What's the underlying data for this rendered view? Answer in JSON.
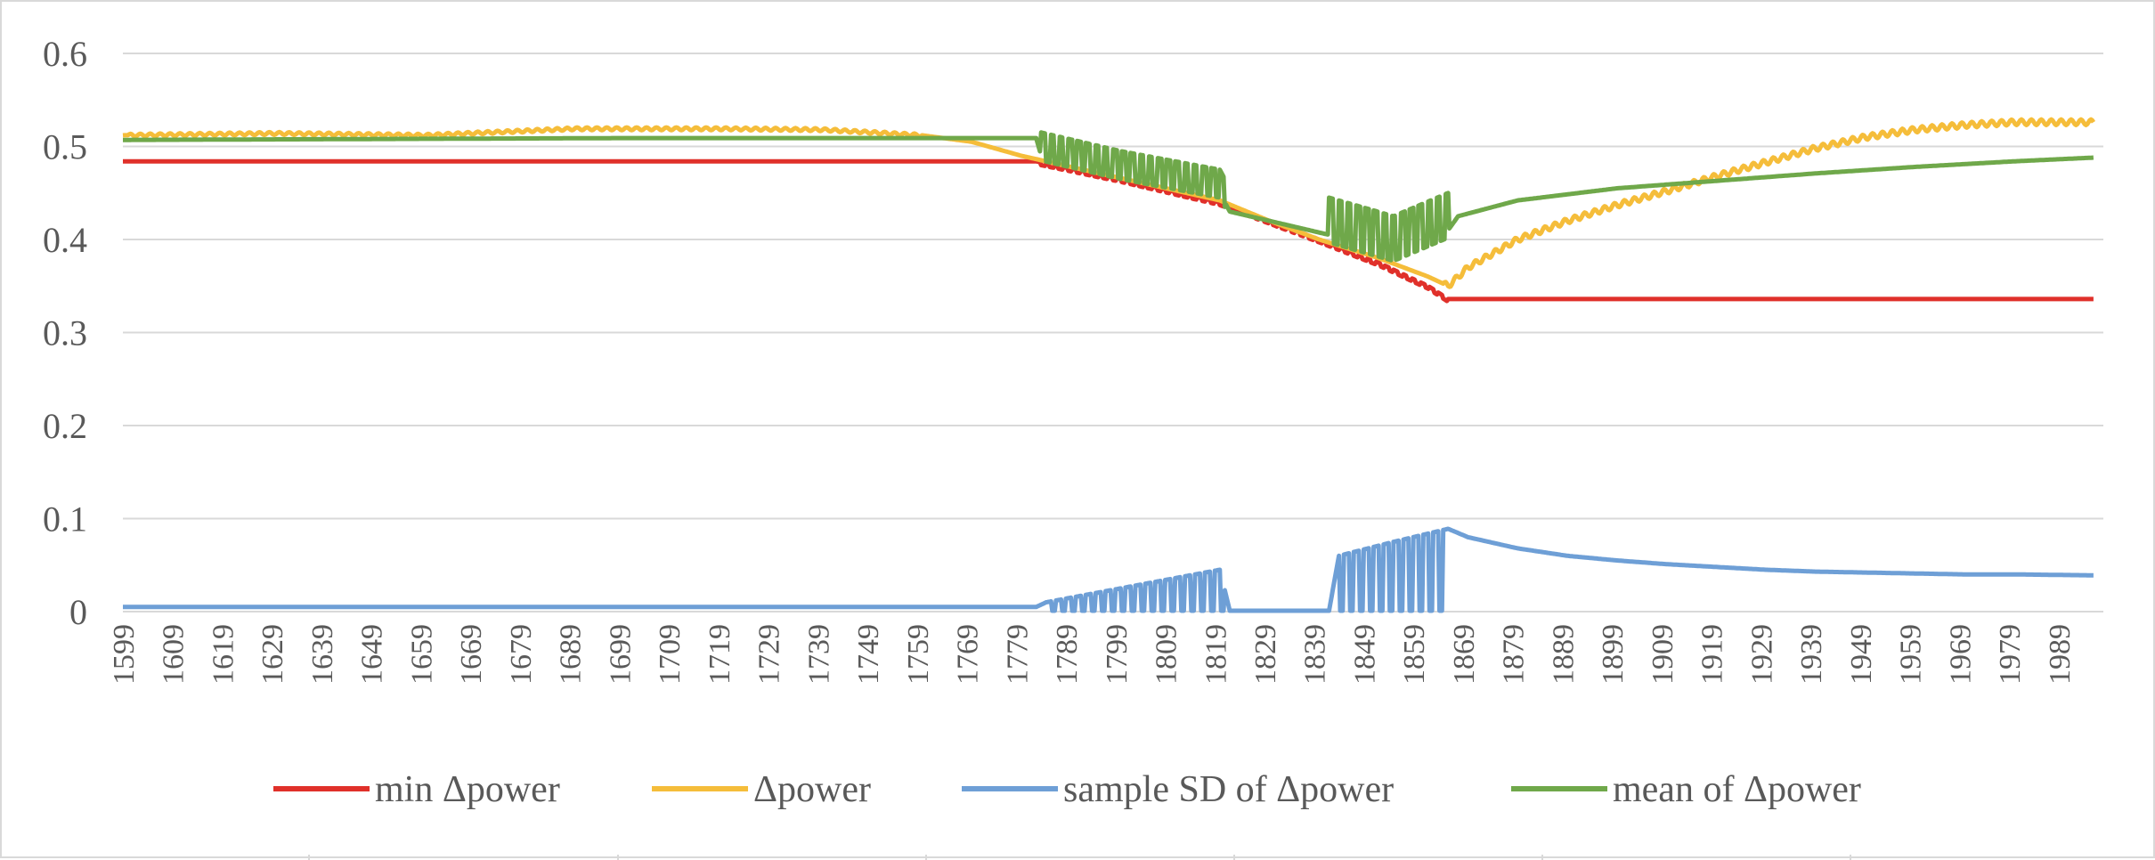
{
  "chart_data": {
    "type": "line",
    "title": "",
    "xlabel": "",
    "ylabel": "",
    "xlim": [
      1599,
      1998
    ],
    "ylim": [
      0,
      0.6
    ],
    "y_ticks": [
      "0",
      "0.1",
      "0.2",
      "0.3",
      "0.4",
      "0.5",
      "0.6"
    ],
    "x_ticks": [
      "1599",
      "1609",
      "1619",
      "1629",
      "1639",
      "1649",
      "1659",
      "1669",
      "1679",
      "1689",
      "1699",
      "1709",
      "1719",
      "1729",
      "1739",
      "1749",
      "1759",
      "1769",
      "1779",
      "1789",
      "1799",
      "1809",
      "1819",
      "1829",
      "1839",
      "1849",
      "1859",
      "1869",
      "1879",
      "1889",
      "1899",
      "1909",
      "1919",
      "1929",
      "1939",
      "1949",
      "1959",
      "1969",
      "1979",
      "1989"
    ],
    "grid": true,
    "legend_position": "bottom",
    "series": [
      {
        "name": "min Δpower",
        "color": "#e0302a",
        "x": [
          1599,
          1783,
          1800,
          1820,
          1830,
          1840,
          1852,
          1862,
          1866,
          1996
        ],
        "y": [
          0.484,
          0.484,
          0.465,
          0.44,
          0.42,
          0.4,
          0.375,
          0.35,
          0.336,
          0.336
        ]
      },
      {
        "name": "Δpower",
        "color": "#f5bd3a",
        "x": [
          1599,
          1630,
          1660,
          1690,
          1720,
          1740,
          1760,
          1770,
          1780,
          1800,
          1820,
          1830,
          1840,
          1852,
          1862,
          1866,
          1870,
          1880,
          1890,
          1900,
          1910,
          1920,
          1930,
          1940,
          1950,
          1960,
          1970,
          1980,
          1996
        ],
        "y": [
          0.512,
          0.514,
          0.512,
          0.519,
          0.519,
          0.518,
          0.512,
          0.505,
          0.49,
          0.466,
          0.442,
          0.42,
          0.4,
          0.38,
          0.36,
          0.35,
          0.37,
          0.4,
          0.42,
          0.437,
          0.452,
          0.468,
          0.483,
          0.498,
          0.51,
          0.518,
          0.523,
          0.526,
          0.526
        ]
      },
      {
        "name": "sample SD of Δpower",
        "color": "#6e9fd6",
        "x": [
          1599,
          1783,
          1785,
          1800,
          1820,
          1822,
          1842,
          1844,
          1855,
          1866,
          1870,
          1880,
          1890,
          1900,
          1910,
          1920,
          1930,
          1940,
          1950,
          1960,
          1970,
          1980,
          1996
        ],
        "y": [
          0.005,
          0.005,
          0.01,
          0.025,
          0.045,
          0.001,
          0.001,
          0.06,
          0.075,
          0.089,
          0.08,
          0.068,
          0.06,
          0.055,
          0.051,
          0.048,
          0.045,
          0.043,
          0.042,
          0.041,
          0.04,
          0.04,
          0.039
        ]
      },
      {
        "name": "mean of Δpower",
        "color": "#6fa84a",
        "x": [
          1599,
          1700,
          1783,
          1784,
          1800,
          1820,
          1822,
          1830,
          1842,
          1855,
          1866,
          1868,
          1880,
          1900,
          1920,
          1940,
          1960,
          1980,
          1996
        ],
        "y": [
          0.507,
          0.509,
          0.509,
          0.49,
          0.47,
          0.45,
          0.43,
          0.42,
          0.405,
          0.385,
          0.41,
          0.425,
          0.442,
          0.455,
          0.463,
          0.471,
          0.478,
          0.484,
          0.488
        ]
      }
    ],
    "oscillations": [
      {
        "series": 0,
        "from": 1783,
        "to": 1866,
        "mode": "min",
        "period": 1.8
      },
      {
        "series": 1,
        "from": 1865,
        "to": 1996,
        "mode": "jitter",
        "period": 2,
        "amp": 0.003
      },
      {
        "series": 1,
        "from": 1600,
        "to": 1760,
        "mode": "jitter",
        "period": 2,
        "amp": 0.0015
      },
      {
        "series": 3,
        "from": 1784,
        "to": 1821,
        "mode": "band",
        "period": 1.8,
        "amp": 0.025
      },
      {
        "series": 3,
        "from": 1842,
        "to": 1866,
        "mode": "band",
        "period": 1.8,
        "amp": 0.04
      },
      {
        "series": 2,
        "from": 1785,
        "to": 1821,
        "mode": "teeth",
        "period": 2
      },
      {
        "series": 2,
        "from": 1843,
        "to": 1866,
        "mode": "teeth",
        "period": 2
      }
    ]
  }
}
